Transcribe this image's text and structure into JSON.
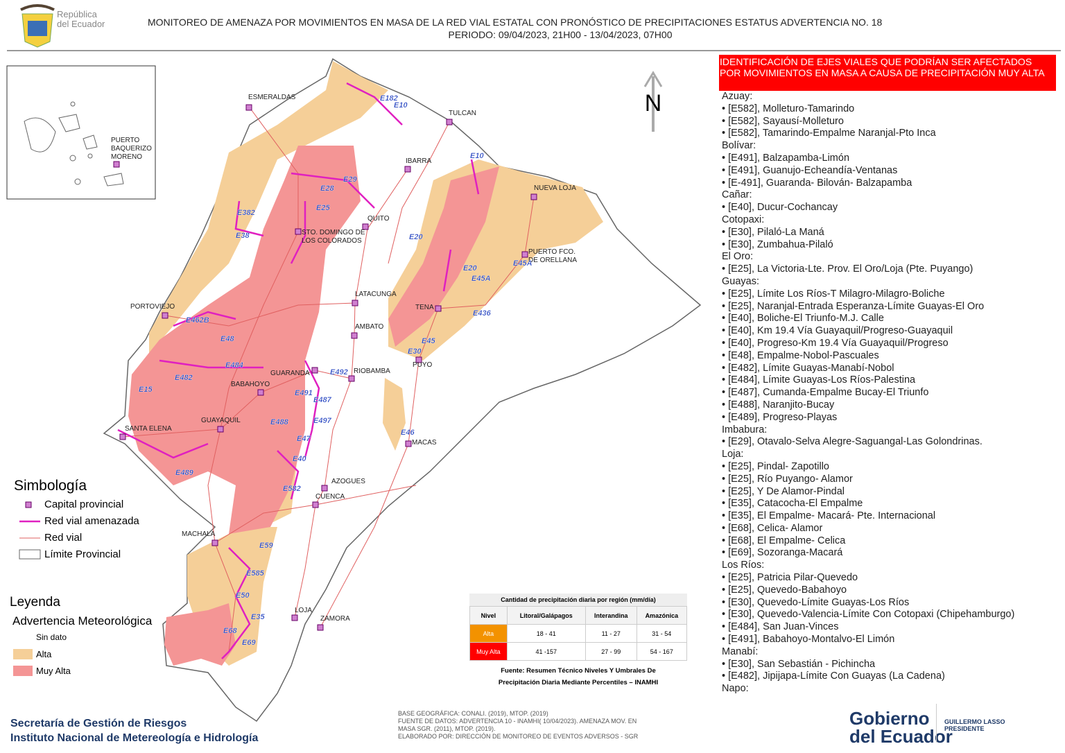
{
  "header": {
    "logo_text": [
      "República",
      "del Ecuador"
    ],
    "title": "MONITOREO DE AMENAZA POR MOVIMIENTOS EN MASA DE LA RED VIAL  ESTATAL  CON PRONÓSTICO  DE  PRECIPITACIONES ESTATUS ADVERTENCIA NO. 18",
    "period": "PERIODO: 09/04/2023, 21H00 - 13/04/2023, 07H00"
  },
  "map": {
    "north": "N",
    "cities": [
      [
        "ESMERALDAS"
      ],
      [
        "TULCAN"
      ],
      [
        "IBARRA"
      ],
      [
        "NUEVA LOJA"
      ],
      [
        "QUITO"
      ],
      [
        "STO. DOMINGO DE",
        "LOS COLORADOS"
      ],
      [
        "PUERTO FCO.",
        "DE ORELLANA"
      ],
      [
        "PORTOVIEJO"
      ],
      [
        "LATACUNGA"
      ],
      [
        "TENA"
      ],
      [
        "AMBATO"
      ],
      [
        "PUYO"
      ],
      [
        "GUARANDA"
      ],
      [
        "RIOBAMBA"
      ],
      [
        "BABAHOYO"
      ],
      [
        "GUAYAQUIL"
      ],
      [
        "SANTA ELENA"
      ],
      [
        "MACAS"
      ],
      [
        "AZOGUES"
      ],
      [
        "CUENCA"
      ],
      [
        "MACHALA"
      ],
      [
        "LOJA"
      ],
      [
        "ZAMORA"
      ],
      [
        "PUERTO",
        "BAQUERIZO",
        "MORENO"
      ]
    ],
    "roads": [
      "E182",
      "E10",
      "E29",
      "E28",
      "E25",
      "E382",
      "E38",
      "E20",
      "E10",
      "E20",
      "E45A",
      "E45A",
      "E436",
      "E45",
      "E30",
      "E462B",
      "E48",
      "E484",
      "E482",
      "E15",
      "E492",
      "E491",
      "E487",
      "E497",
      "E488",
      "E47",
      "E40",
      "E46",
      "E582",
      "E489",
      "E59",
      "E585",
      "E50",
      "E35",
      "E68",
      "E69"
    ]
  },
  "legend": {
    "symbology_title": "Simbología",
    "symbols": [
      "Capital provincial",
      "Red vial amenazada",
      "Red vial",
      "Límite Provincial"
    ],
    "title": "Leyenda",
    "subtitle": "Advertencia Meteorológica",
    "levels": [
      "Sin dato",
      "Alta",
      "Muy Alta"
    ]
  },
  "table": {
    "title": "Cantidad de precipitación diaria por región (mm/día)",
    "header": [
      "Nivel",
      "Litoral/Galápagos",
      "Interandina",
      "Amazónica"
    ],
    "rows": [
      [
        "Alta",
        "18 - 41",
        "11 - 27",
        "31 - 54"
      ],
      [
        "Muy Alta",
        "41 -157",
        "27 - 99",
        "54 - 167"
      ]
    ],
    "source": [
      "Fuente: Resumen Técnico Niveles Y Umbrales De",
      "Precipitación Diaria Mediante Percentiles – INAMHI"
    ]
  },
  "panel": {
    "heading": "IDENTIFICACIÓN DE EJES VIALES QUE PODRÍAN SER AFECTADOS POR MOVIMIENTOS EN MASA A CAUSA DE PRECIPITACIÓN MUY ALTA",
    "groups": [
      {
        "province": "Azuay:",
        "items": [
          "• [E582], Molleturo-Tamarindo",
          "• [E582], Sayausí-Molleturo",
          "• [E582], Tamarindo-Empalme Naranjal-Pto Inca"
        ]
      },
      {
        "province": "Bolívar:",
        "items": [
          "• [E491], Balzapamba-Limón",
          "• [E491], Guanujo-Echeandía-Ventanas",
          "• [E-491], Guaranda- Bilován- Balzapamba"
        ]
      },
      {
        "province": "Cañar:",
        "items": [
          "• [E40], Ducur-Cochancay"
        ]
      },
      {
        "province": "Cotopaxi:",
        "items": [
          "• [E30], Pilaló-La Maná",
          "• [E30], Zumbahua-Pilaló"
        ]
      },
      {
        "province": "El Oro:",
        "items": [
          "• [E25], La Victoria-Lte. Prov. El Oro/Loja (Pte. Puyango)"
        ]
      },
      {
        "province": "Guayas:",
        "items": [
          "• [E25], Límite Los Ríos-T Milagro-Milagro-Boliche",
          "• [E25], Naranjal-Entrada Esperanza-Límite Guayas-El Oro",
          "• [E40], Boliche-El Triunfo-M.J. Calle",
          "• [E40], Km 19.4 Vía Guayaquil/Progreso-Guayaquil",
          "• [E40], Progreso-Km 19.4 Vía Guayaquil/Progreso",
          "• [E48], Empalme-Nobol-Pascuales",
          "• [E482], Límite Guayas-Manabí-Nobol",
          "• [E484], Límite Guayas-Los Ríos-Palestina",
          "• [E487], Cumanda-Empalme Bucay-El Triunfo",
          "• [E488], Naranjito-Bucay",
          "• [E489], Progreso-Playas"
        ]
      },
      {
        "province": "Imbabura:",
        "items": [
          "• [E29], Otavalo-Selva Alegre-Saguangal-Las Golondrinas."
        ]
      },
      {
        "province": "Loja:",
        "items": [
          "• [E25], Pindal- Zapotillo",
          "• [E25], Río Puyango- Alamor",
          "• [E25], Y De Alamor-Pindal",
          "• [E35], Catacocha-El Empalme",
          "• [E35], El Empalme- Macará- Pte. Internacional",
          "• [E68], Celica- Alamor",
          "• [E68], El Empalme- Celica",
          "• [E69], Sozoranga-Macará"
        ]
      },
      {
        "province": "Los Ríos:",
        "items": [
          "• [E25], Patricia Pilar-Quevedo",
          "• [E25], Quevedo-Babahoyo",
          "• [E30], Quevedo-Límite Guayas-Los Ríos",
          "• [E30], Quevedo-Valencia-Límite Con Cotopaxi (Chipehamburgo)",
          "• [E484], San Juan-Vinces",
          "• [E491], Babahoyo-Montalvo-El Limón"
        ]
      },
      {
        "province": "Manabí:",
        "items": [
          "• [E30], San Sebastián - Pichincha",
          "• [E482], Jipijapa-Límite Con Guayas (La Cadena)"
        ]
      },
      {
        "province": "Napo:",
        "items": []
      }
    ]
  },
  "footer": {
    "institutions": [
      "Secretaría de Gestión de Riesgos",
      "Instituto Nacional de Metereología e Hidrología"
    ],
    "notes": [
      "BASE GEOGRÁFICA: CONALI. (2019), MTOP. (2019)",
      "FUENTE DE DATOS: ADVERTENCIA 10 - INAMHI( 10/04/2023).  AMENAZA MOV. EN",
      "MASA SGR. (2011), MTOP. (2019).",
      "ELABORADO POR: DIRECCIÓN DE MONITOREO DE EVENTOS ADVERSOS - SGR"
    ],
    "gov": [
      "Gobierno",
      "del Ecuador"
    ],
    "president": [
      "GUILLERMO LASSO",
      "PRESIDENTE"
    ]
  }
}
